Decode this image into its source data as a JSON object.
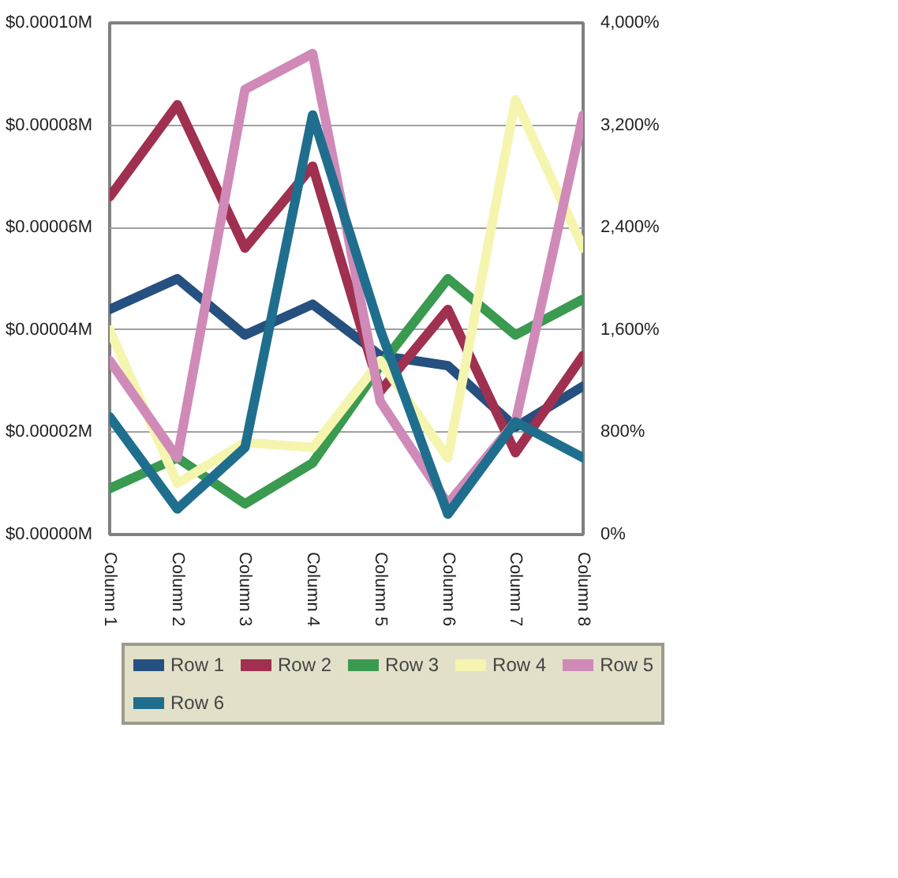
{
  "chart_data": {
    "type": "line",
    "categories": [
      "Column 1",
      "Column 2",
      "Column 3",
      "Column 4",
      "Column 5",
      "Column 6",
      "Column 7",
      "Column 8"
    ],
    "series": [
      {
        "name": "Row 1",
        "color": "#25507f",
        "values": [
          4.4e-05,
          5e-05,
          3.9e-05,
          4.5e-05,
          3.5e-05,
          3.3e-05,
          2.1e-05,
          2.9e-05
        ]
      },
      {
        "name": "Row 2",
        "color": "#a0304f",
        "values": [
          6.6e-05,
          8.4e-05,
          5.6e-05,
          7.2e-05,
          2.8e-05,
          4.4e-05,
          1.6e-05,
          3.5e-05
        ]
      },
      {
        "name": "Row 3",
        "color": "#3a9a50",
        "values": [
          9e-06,
          1.5e-05,
          6e-06,
          1.4e-05,
          3.3e-05,
          5e-05,
          3.9e-05,
          4.6e-05
        ]
      },
      {
        "name": "Row 4",
        "color": "#f5f5b0",
        "values": [
          4e-05,
          1e-05,
          1.8e-05,
          1.7e-05,
          3.4e-05,
          1.5e-05,
          8.5e-05,
          5.6e-05
        ]
      },
      {
        "name": "Row 5",
        "color": "#d08ab8",
        "values": [
          3.4e-05,
          1.5e-05,
          8.7e-05,
          9.4e-05,
          2.6e-05,
          6e-06,
          2.2e-05,
          8.2e-05
        ]
      },
      {
        "name": "Row 6",
        "color": "#1f6e8e",
        "values": [
          2.3e-05,
          5e-06,
          1.7e-05,
          8.2e-05,
          4e-05,
          4e-06,
          2.2e-05,
          1.5e-05
        ]
      }
    ],
    "ylim": [
      0,
      0.0001
    ],
    "yticks": [
      {
        "value": 0,
        "label": "$0.00000M"
      },
      {
        "value": 2e-05,
        "label": "$0.00002M"
      },
      {
        "value": 4e-05,
        "label": "$0.00004M"
      },
      {
        "value": 6e-05,
        "label": "$0.00006M"
      },
      {
        "value": 8e-05,
        "label": "$0.00008M"
      },
      {
        "value": 0.0001,
        "label": "$0.00010M"
      }
    ],
    "y2lim": [
      0,
      4000
    ],
    "y2ticks": [
      {
        "value": 0,
        "label": "0%"
      },
      {
        "value": 800,
        "label": "800%"
      },
      {
        "value": 1600,
        "label": "1,600%"
      },
      {
        "value": 2400,
        "label": "2,400%"
      },
      {
        "value": 3200,
        "label": "3,200%"
      },
      {
        "value": 4000,
        "label": "4,000%"
      }
    ],
    "grid": "y",
    "legend": "bottom",
    "marker": "none",
    "line_style": "solid"
  }
}
